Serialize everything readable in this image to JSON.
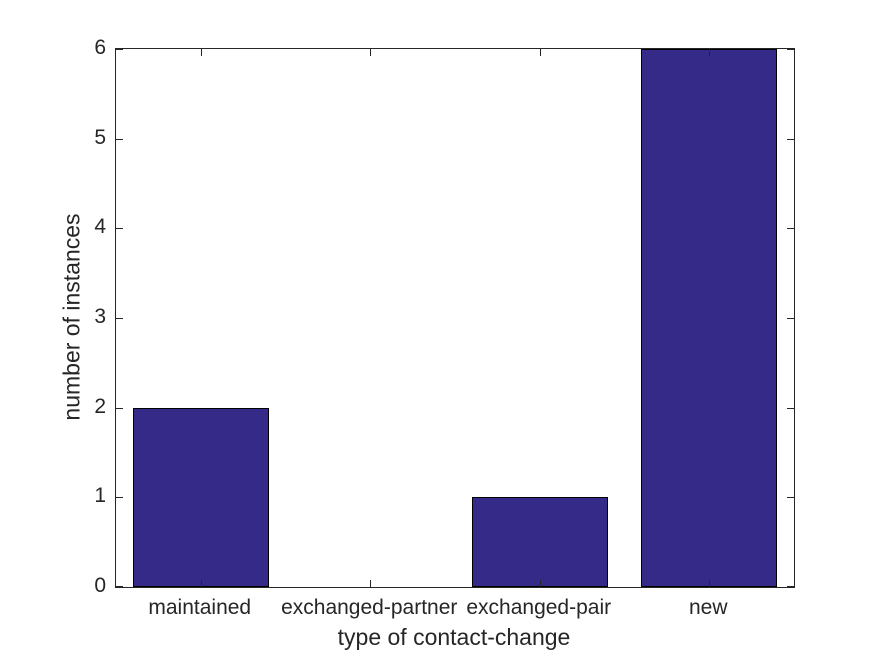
{
  "chart_data": {
    "type": "bar",
    "categories": [
      "maintained",
      "exchanged-partner",
      "exchanged-pair",
      "new"
    ],
    "values": [
      2,
      0,
      1,
      6
    ],
    "title": "",
    "xlabel": "type of contact-change",
    "ylabel": "number of instances",
    "ylim": [
      0,
      6
    ],
    "yticks": [
      0,
      1,
      2,
      3,
      4,
      5,
      6
    ],
    "bar_width_fraction": 0.8,
    "bar_color": "#352A87",
    "bar_edge_color": "#000000",
    "axis_color": "#262626",
    "text_color": "#262626",
    "background_color": "#FFFFFF",
    "grid": false,
    "legend": null,
    "box": "on",
    "tick_direction": "in"
  }
}
